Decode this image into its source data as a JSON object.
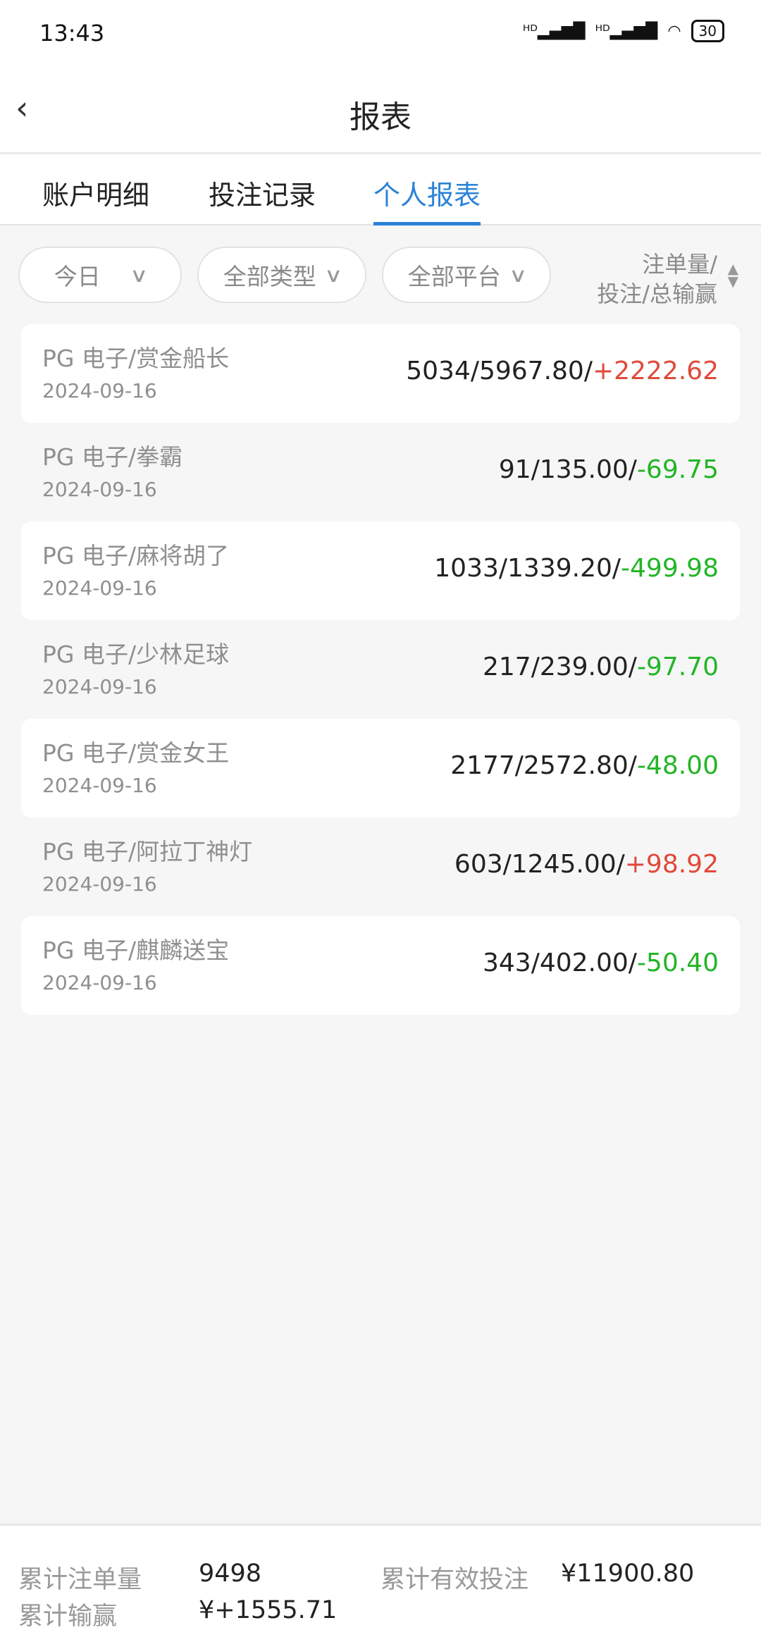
{
  "status": {
    "time": "13:43",
    "battery": "30"
  },
  "header": {
    "title": "报表"
  },
  "tabs": [
    {
      "label": "账户明细"
    },
    {
      "label": "投注记录"
    },
    {
      "label": "个人报表"
    }
  ],
  "filters": {
    "period": "今日",
    "type": "全部类型",
    "platform": "全部平台",
    "sort_label_1": "注单量/",
    "sort_label_2": "投注/总输赢"
  },
  "records": [
    {
      "name": "PG  电子/赏金船长",
      "date": "2024-09-16",
      "stats": "5034/5967.80/",
      "result": "+2222.62"
    },
    {
      "name": "PG  电子/拳霸",
      "date": "2024-09-16",
      "stats": "91/135.00/",
      "result": "-69.75"
    },
    {
      "name": "PG  电子/麻将胡了",
      "date": "2024-09-16",
      "stats": "1033/1339.20/",
      "result": "-499.98"
    },
    {
      "name": "PG  电子/少林足球",
      "date": "2024-09-16",
      "stats": "217/239.00/",
      "result": "-97.70"
    },
    {
      "name": "PG  电子/赏金女王",
      "date": "2024-09-16",
      "stats": "2177/2572.80/",
      "result": "-48.00"
    },
    {
      "name": "PG  电子/阿拉丁神灯",
      "date": "2024-09-16",
      "stats": "603/1245.00/",
      "result": "+98.92"
    },
    {
      "name": "PG  电子/麒麟送宝",
      "date": "2024-09-16",
      "stats": "343/402.00/",
      "result": "-50.40"
    }
  ],
  "summary": {
    "count_label": "累计注单量",
    "count": "9498",
    "bet_label": "累计有效投注",
    "bet": "¥11900.80",
    "winloss_label": "累计输赢",
    "winloss": "¥+1555.71"
  },
  "colors": {
    "accent": "#2a83d8",
    "positive": "#e0493a",
    "negative": "#22b525"
  }
}
